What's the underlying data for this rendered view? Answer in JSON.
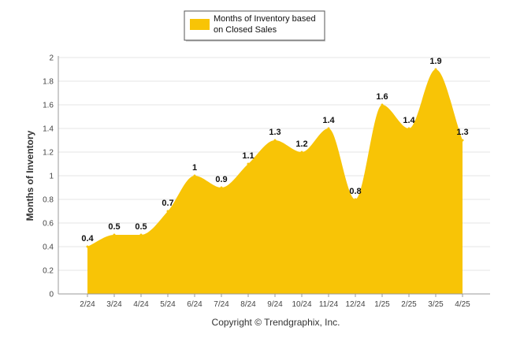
{
  "chart_data": {
    "type": "area",
    "categories": [
      "2/24",
      "3/24",
      "4/24",
      "5/24",
      "6/24",
      "7/24",
      "8/24",
      "9/24",
      "10/24",
      "11/24",
      "12/24",
      "1/25",
      "2/25",
      "3/25",
      "4/25"
    ],
    "series": [
      {
        "name": "Months of Inventory based on Closed Sales",
        "values": [
          0.4,
          0.5,
          0.5,
          0.7,
          1.0,
          0.9,
          1.1,
          1.3,
          1.2,
          1.4,
          0.8,
          1.6,
          1.4,
          1.9,
          1.3
        ],
        "data_labels": [
          "0.4",
          "0.5",
          "0.5",
          "0.7",
          "1",
          "0.9",
          "1.1",
          "1.3",
          "1.2",
          "1.4",
          "0.8",
          "1.6",
          "1.4",
          "1.9",
          "1.3"
        ],
        "color": "#F8C406"
      }
    ],
    "title": "",
    "xlabel": "",
    "ylabel": "Months of Inventory",
    "ylim": [
      0,
      2
    ],
    "y_ticks": [
      "0",
      "0.2",
      "0.4",
      "0.6",
      "0.8",
      "1",
      "1.2",
      "1.4",
      "1.6",
      "1.8",
      "2"
    ],
    "grid": true,
    "legend": {
      "position": "top-center",
      "lines": [
        "Months of Inventory based",
        "on Closed Sales"
      ]
    },
    "footer": "Copyright © Trendgraphix, Inc."
  },
  "colors": {
    "area": "#F8C406",
    "grid": "#E6E6E6",
    "axis": "#999999"
  }
}
